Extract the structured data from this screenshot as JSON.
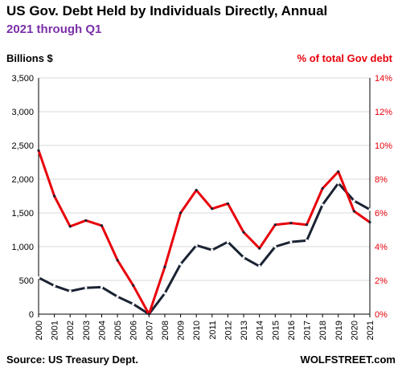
{
  "chart_data": {
    "type": "line",
    "title": "US Gov. Debt Held by Individuals Directly, Annual",
    "subtitle": "2021 through Q1",
    "left_axis_label": "Billions  $",
    "right_axis_label": "% of total Gov debt",
    "source": "Source: US Treasury Dept.",
    "brand": "WOLFSTREET.com",
    "categories": [
      "2000",
      "2001",
      "2002",
      "2003",
      "2004",
      "2005",
      "2006",
      "2007",
      "2008",
      "2009",
      "2010",
      "2011",
      "2012",
      "2013",
      "2014",
      "2015",
      "2016",
      "2017",
      "2018",
      "2019",
      "2020",
      "2021"
    ],
    "left_ylim": [
      0,
      3500
    ],
    "left_yticks": [
      "0",
      "500",
      "1,000",
      "1,500",
      "2,000",
      "2,500",
      "3,000",
      "3,500"
    ],
    "left_ytick_values": [
      0,
      500,
      1000,
      1500,
      2000,
      2500,
      3000,
      3500
    ],
    "right_ylim": [
      0,
      14
    ],
    "right_yticks": [
      "0%",
      "2%",
      "4%",
      "6%",
      "8%",
      "10%",
      "12%",
      "14%"
    ],
    "right_ytick_values": [
      0,
      2,
      4,
      6,
      8,
      10,
      12,
      14
    ],
    "grid": true,
    "series": [
      {
        "axis": "left",
        "color": "#1a2233",
        "values": [
          540,
          420,
          340,
          390,
          400,
          260,
          150,
          0,
          310,
          740,
          1020,
          950,
          1070,
          840,
          710,
          1000,
          1070,
          1090,
          1620,
          1940,
          1680,
          1550
        ]
      },
      {
        "axis": "right",
        "color": "#e8000b",
        "values": [
          9.7,
          7.0,
          5.2,
          5.55,
          5.25,
          3.2,
          1.7,
          0,
          2.8,
          6.0,
          7.35,
          6.25,
          6.55,
          4.85,
          3.9,
          5.3,
          5.4,
          5.3,
          7.45,
          8.45,
          6.1,
          5.45
        ]
      }
    ]
  },
  "colors": {
    "title": "#000000",
    "subtitle": "#7b2fa8",
    "right_axis": "#e8000b",
    "grid": "#d9d9d9"
  }
}
